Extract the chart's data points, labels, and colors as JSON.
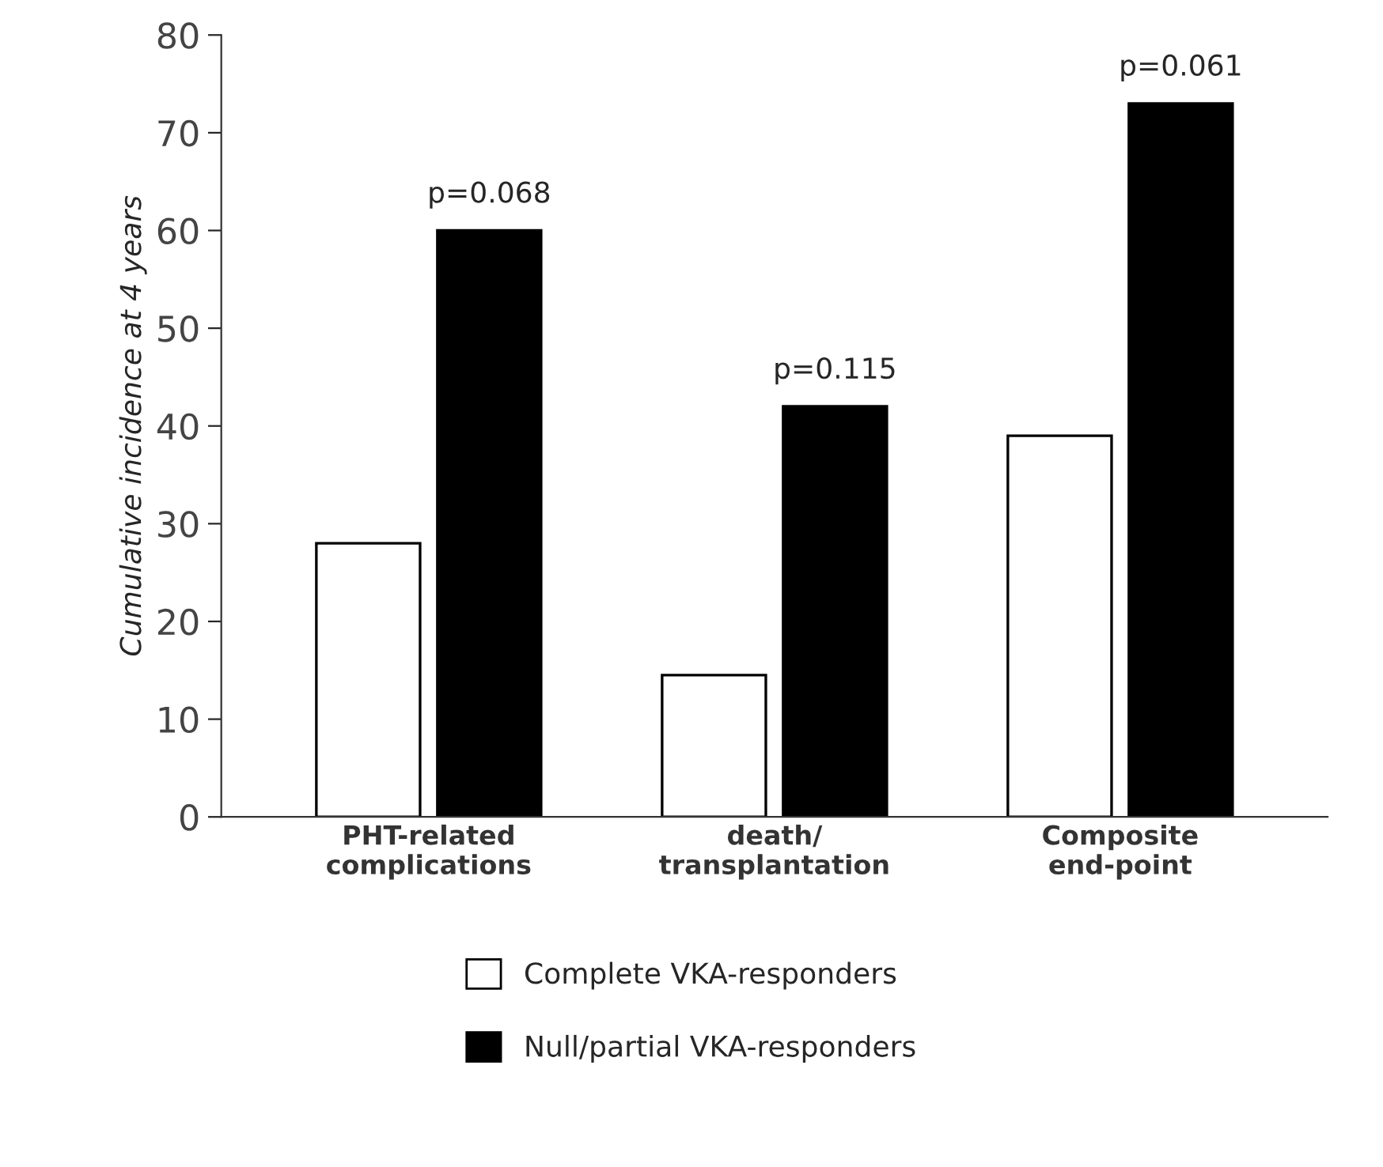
{
  "chart_data": {
    "type": "bar",
    "ylabel": "Cumulative incidence at 4 years",
    "categories": [
      "PHT-related\ncomplications",
      "death/\ntransplantation",
      "Composite\nend-point"
    ],
    "series": [
      {
        "name": "Complete VKA-responders",
        "color": "#ffffff",
        "values": [
          28,
          14.5,
          39
        ]
      },
      {
        "name": "Null/partial VKA-responders",
        "color": "#000000",
        "values": [
          60,
          42,
          73
        ]
      }
    ],
    "annotations": [
      "p=0.068",
      "p=0.115",
      "p=0.061"
    ],
    "ylim": [
      0,
      80
    ],
    "yticks": [
      0,
      10,
      20,
      30,
      40,
      50,
      60,
      70,
      80
    ],
    "grid": false,
    "legend": "bottom"
  }
}
